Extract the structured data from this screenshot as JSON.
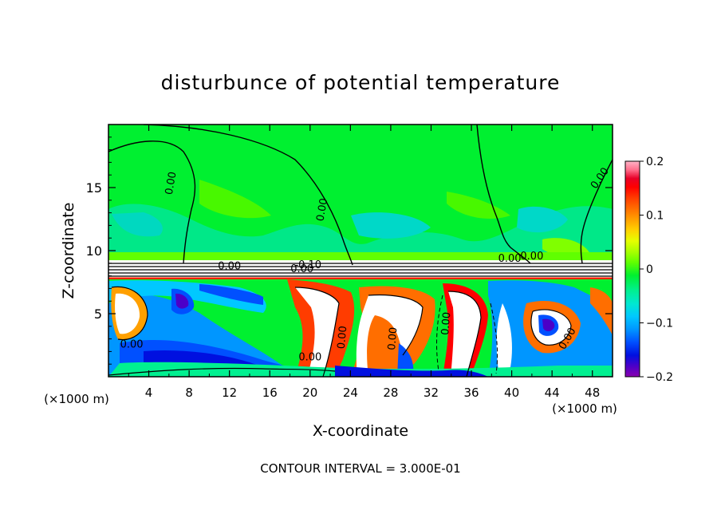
{
  "chart_data": {
    "type": "heatmap",
    "title": "disturbunce of potential temperature",
    "xlabel": "X-coordinate",
    "ylabel": "Z-coordinate",
    "x_unit_left": "(×1000 m)",
    "x_unit_right": "(×1000 m)",
    "xlim": [
      0,
      50
    ],
    "ylim": [
      0,
      20
    ],
    "x_ticks": [
      4,
      8,
      12,
      16,
      20,
      24,
      28,
      32,
      36,
      40,
      44,
      48
    ],
    "y_ticks": [
      5,
      10,
      15
    ],
    "x_tick_labels": [
      "4",
      "8",
      "12",
      "16",
      "20",
      "24",
      "28",
      "32",
      "36",
      "40",
      "44",
      "48"
    ],
    "y_tick_labels": [
      "5",
      "10",
      "15"
    ],
    "colorbar": {
      "min": -0.2,
      "max": 0.2,
      "tick_values": [
        0.2,
        0.1,
        0,
        -0.1,
        -0.2
      ],
      "tick_labels": [
        "0.2",
        "0.1",
        "0",
        "−0.1",
        "−0.2"
      ],
      "colors": [
        "#8a00b0",
        "#4b00c8",
        "#0010e0",
        "#0050ff",
        "#0096ff",
        "#00c8ff",
        "#00e8d0",
        "#00f090",
        "#00f030",
        "#60ff00",
        "#a8ff00",
        "#e6ff00",
        "#ffd200",
        "#ffa000",
        "#ff6e00",
        "#ff3c00",
        "#ff0000",
        "#e80028",
        "#ff6e8c",
        "#ffb4c8"
      ]
    },
    "contour_labels": [
      "0.00",
      "0.00",
      "0.00",
      "0.00",
      "0.00",
      "0.00",
      "0.00",
      "0.00",
      "0.00",
      "0.00",
      "0.00",
      "-0.10",
      "0.00",
      "0.00"
    ],
    "annotation": "CONTOUR INTERVAL = 3.000E-01"
  }
}
